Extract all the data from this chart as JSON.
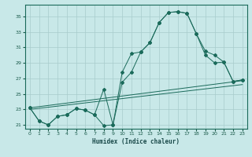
{
  "xlabel": "Humidex (Indice chaleur)",
  "background_color": "#c8e8e8",
  "grid_color": "#a8cccc",
  "line_color": "#1a6a5a",
  "xlim": [
    -0.5,
    23.5
  ],
  "ylim": [
    20.5,
    36.5
  ],
  "yticks": [
    21,
    23,
    25,
    27,
    29,
    31,
    33,
    35
  ],
  "xticks": [
    0,
    1,
    2,
    3,
    4,
    5,
    6,
    7,
    8,
    9,
    10,
    11,
    12,
    13,
    14,
    15,
    16,
    17,
    18,
    19,
    20,
    21,
    22,
    23
  ],
  "curve1_x": [
    0,
    1,
    2,
    3,
    4,
    5,
    6,
    7,
    8,
    9,
    10,
    11,
    12,
    13,
    14,
    15,
    16,
    17,
    18,
    19,
    20,
    21,
    22,
    23
  ],
  "curve1_y": [
    23.2,
    21.5,
    21.0,
    22.1,
    22.3,
    23.1,
    22.9,
    22.3,
    20.9,
    21.0,
    27.8,
    30.2,
    30.4,
    31.6,
    34.2,
    35.5,
    35.6,
    35.4,
    32.8,
    30.0,
    29.0,
    29.1,
    26.6,
    26.8
  ],
  "curve2_x": [
    0,
    1,
    2,
    3,
    4,
    5,
    6,
    7,
    8,
    9,
    10,
    11,
    12,
    13,
    14,
    15,
    16,
    17,
    18,
    19,
    20,
    21,
    22,
    23
  ],
  "curve2_y": [
    23.2,
    21.5,
    21.0,
    22.1,
    22.3,
    23.1,
    22.9,
    22.3,
    25.6,
    21.0,
    26.5,
    27.8,
    30.4,
    31.6,
    34.2,
    35.5,
    35.6,
    35.4,
    32.8,
    30.5,
    30.0,
    29.1,
    26.6,
    26.8
  ],
  "line1_x": [
    0,
    23
  ],
  "line1_y": [
    23.2,
    26.7
  ],
  "line2_x": [
    0,
    23
  ],
  "line2_y": [
    23.0,
    26.2
  ]
}
